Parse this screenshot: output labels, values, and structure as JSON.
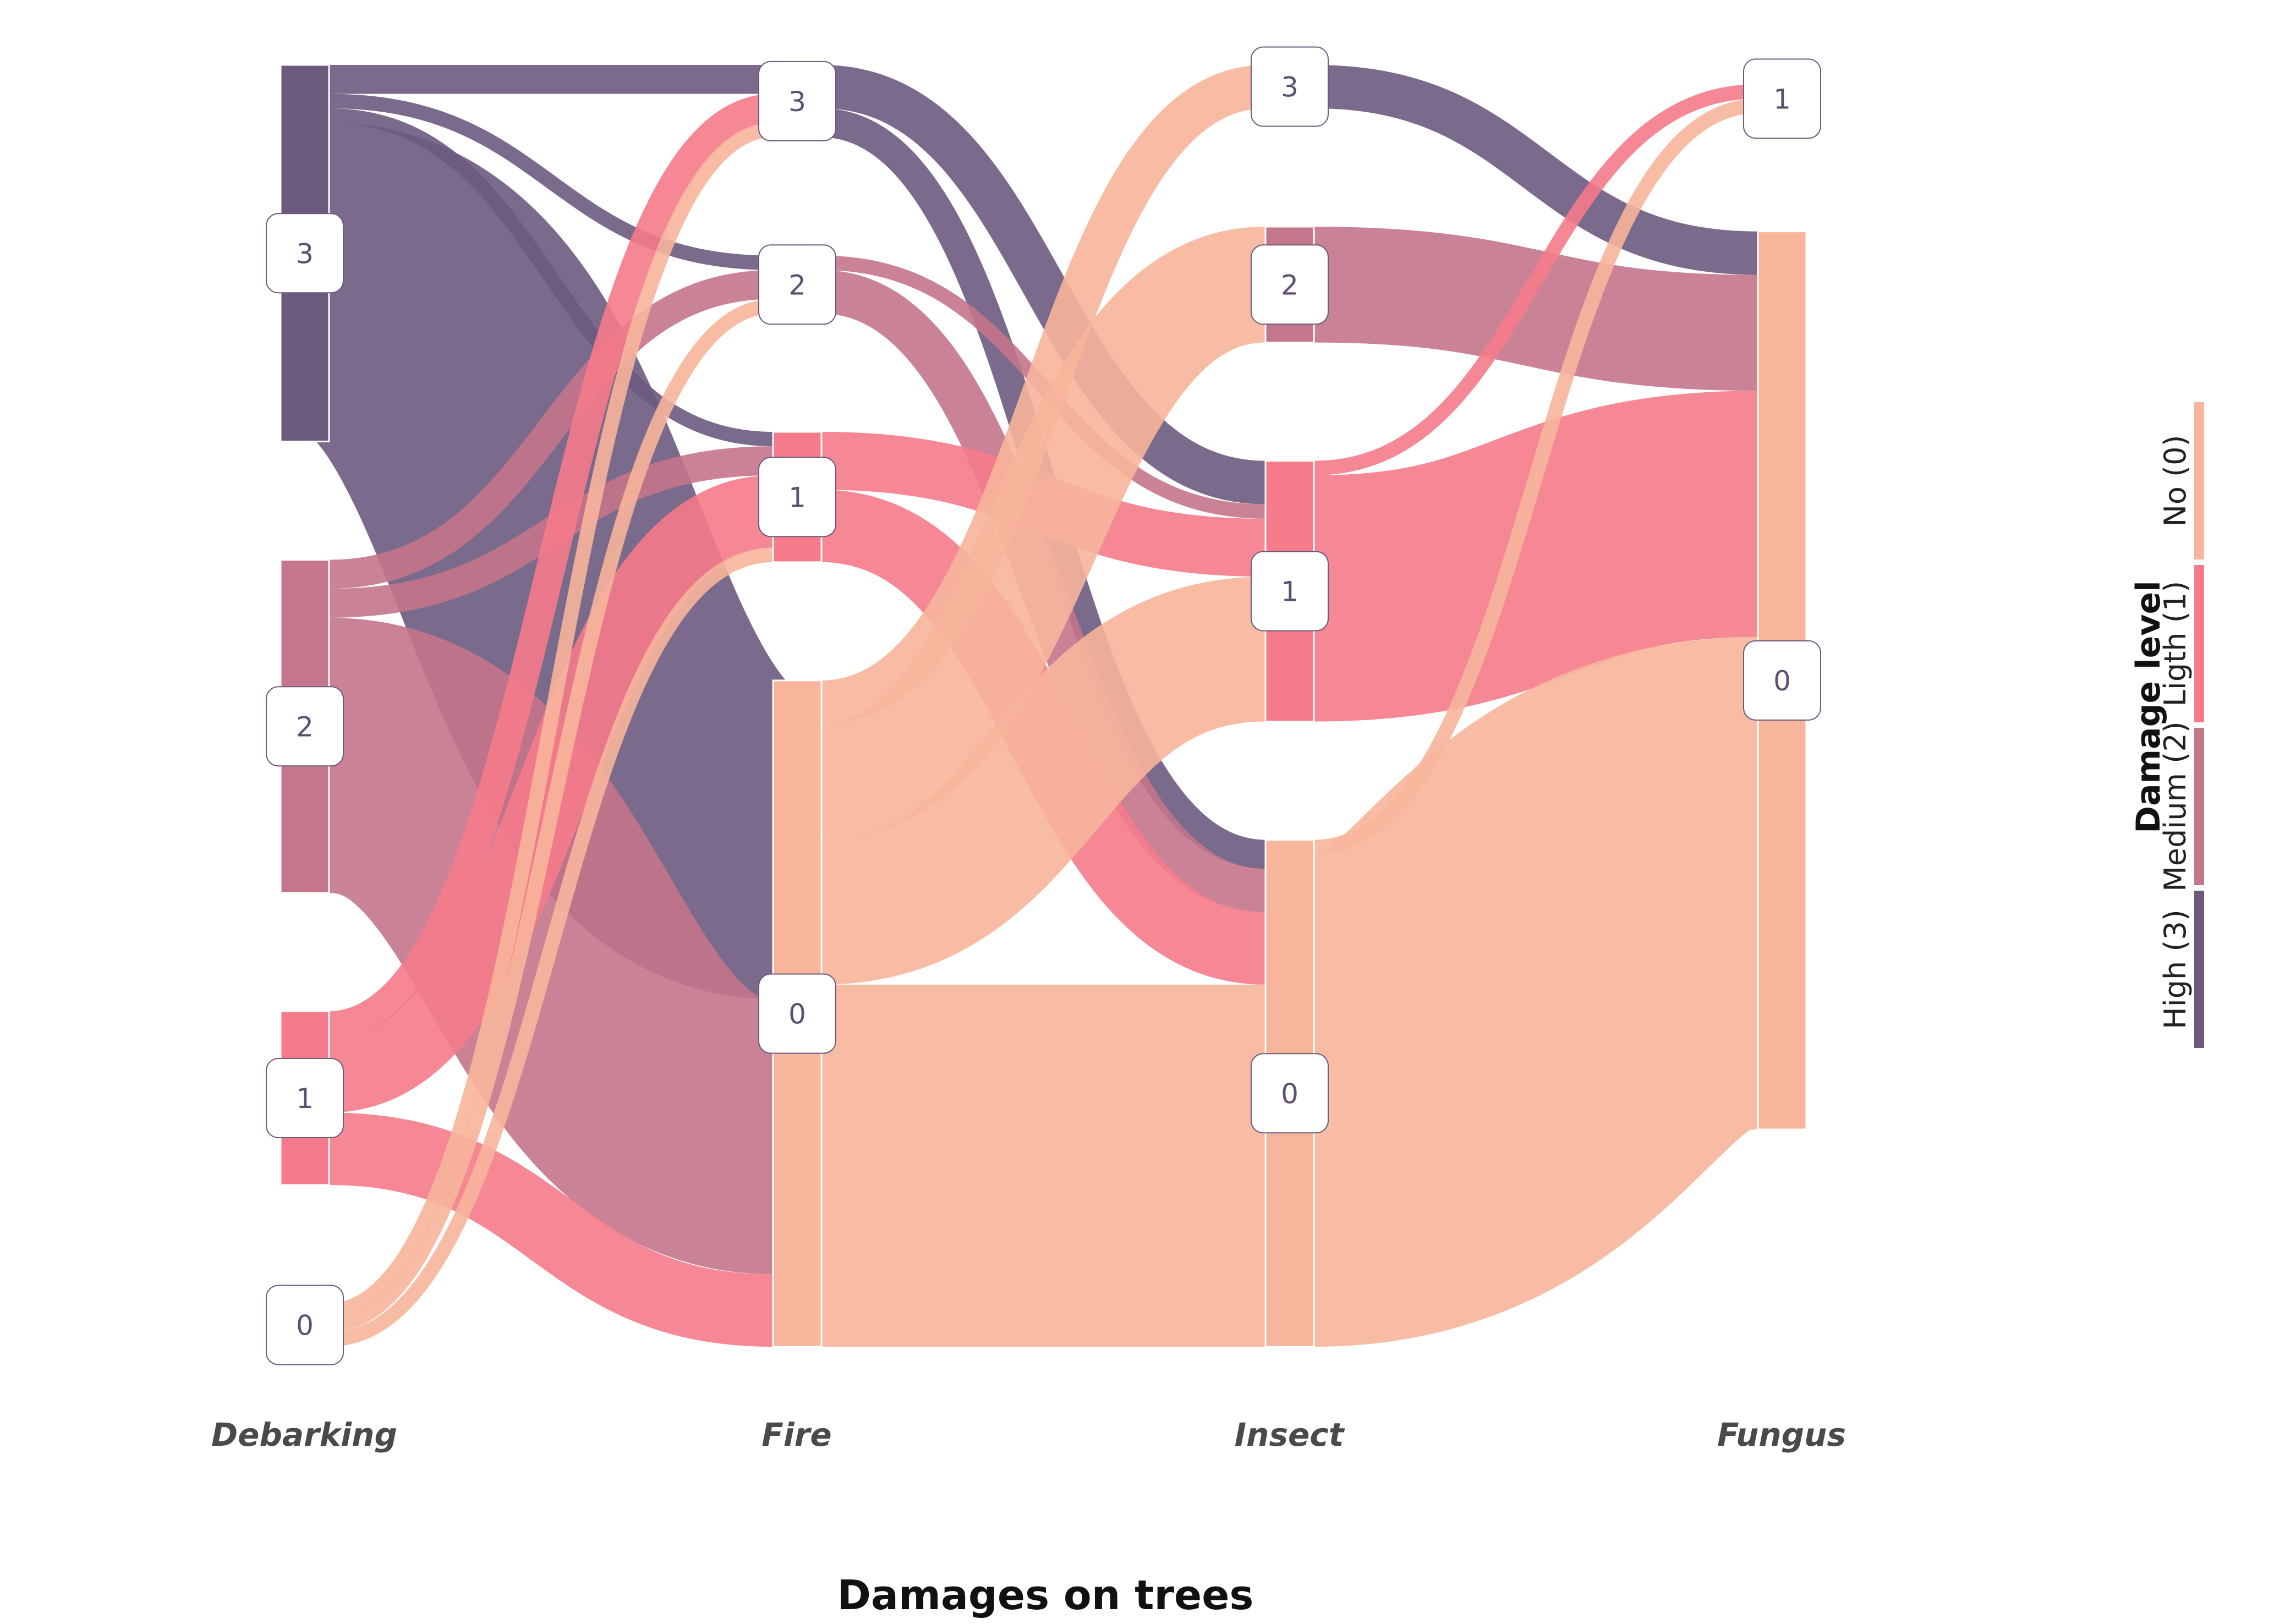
{
  "chart_data": {
    "type": "sankey",
    "title": "Damages on trees",
    "stages": [
      "Debarking",
      "Fire",
      "Insect",
      "Fungus"
    ],
    "levels": [
      "3",
      "2",
      "1",
      "0"
    ],
    "legend": {
      "title": "Damage level",
      "entries": [
        {
          "level": "3",
          "label": "High (3)",
          "color": "#6b5a7e"
        },
        {
          "level": "2",
          "label": "Medium (2)",
          "color": "#c4768b"
        },
        {
          "level": "1",
          "label": "Ligth (1)",
          "color": "#f57b8a"
        },
        {
          "level": "0",
          "label": "No (0)",
          "color": "#f7b59b"
        }
      ]
    },
    "nodes": [
      {
        "stage": "Debarking",
        "level": "3",
        "value": 26
      },
      {
        "stage": "Debarking",
        "level": "2",
        "value": 23
      },
      {
        "stage": "Debarking",
        "level": "1",
        "value": 12
      },
      {
        "stage": "Debarking",
        "level": "0",
        "value": 3
      },
      {
        "stage": "Fire",
        "level": "3",
        "value": 5
      },
      {
        "stage": "Fire",
        "level": "2",
        "value": 4
      },
      {
        "stage": "Fire",
        "level": "1",
        "value": 9
      },
      {
        "stage": "Fire",
        "level": "0",
        "value": 46
      },
      {
        "stage": "Insect",
        "level": "3",
        "value": 3
      },
      {
        "stage": "Insect",
        "level": "2",
        "value": 8
      },
      {
        "stage": "Insect",
        "level": "1",
        "value": 18
      },
      {
        "stage": "Insect",
        "level": "0",
        "value": 35
      },
      {
        "stage": "Fungus",
        "level": "1",
        "value": 2
      },
      {
        "stage": "Fungus",
        "level": "0",
        "value": 62
      }
    ],
    "links": [
      {
        "source": "Debarking:3",
        "target": "Fire:3",
        "value": 2
      },
      {
        "source": "Debarking:3",
        "target": "Fire:2",
        "value": 1
      },
      {
        "source": "Debarking:3",
        "target": "Fire:1",
        "value": 1
      },
      {
        "source": "Debarking:3",
        "target": "Fire:0",
        "value": 22
      },
      {
        "source": "Debarking:2",
        "target": "Fire:2",
        "value": 2
      },
      {
        "source": "Debarking:2",
        "target": "Fire:1",
        "value": 2
      },
      {
        "source": "Debarking:2",
        "target": "Fire:0",
        "value": 19
      },
      {
        "source": "Debarking:1",
        "target": "Fire:3",
        "value": 2
      },
      {
        "source": "Debarking:1",
        "target": "Fire:1",
        "value": 5
      },
      {
        "source": "Debarking:1",
        "target": "Fire:0",
        "value": 5
      },
      {
        "source": "Debarking:0",
        "target": "Fire:3",
        "value": 1
      },
      {
        "source": "Debarking:0",
        "target": "Fire:2",
        "value": 1
      },
      {
        "source": "Debarking:0",
        "target": "Fire:1",
        "value": 1
      },
      {
        "source": "Fire:3",
        "target": "Insect:1",
        "value": 3
      },
      {
        "source": "Fire:3",
        "target": "Insect:0",
        "value": 2
      },
      {
        "source": "Fire:2",
        "target": "Insect:1",
        "value": 1
      },
      {
        "source": "Fire:2",
        "target": "Insect:0",
        "value": 3
      },
      {
        "source": "Fire:1",
        "target": "Insect:1",
        "value": 4
      },
      {
        "source": "Fire:1",
        "target": "Insect:0",
        "value": 5
      },
      {
        "source": "Fire:0",
        "target": "Insect:3",
        "value": 3
      },
      {
        "source": "Fire:0",
        "target": "Insect:2",
        "value": 8
      },
      {
        "source": "Fire:0",
        "target": "Insect:1",
        "value": 10
      },
      {
        "source": "Fire:0",
        "target": "Insect:0",
        "value": 25
      },
      {
        "source": "Insect:3",
        "target": "Fungus:0",
        "value": 3
      },
      {
        "source": "Insect:2",
        "target": "Fungus:0",
        "value": 8
      },
      {
        "source": "Insect:1",
        "target": "Fungus:1",
        "value": 1
      },
      {
        "source": "Insect:1",
        "target": "Fungus:0",
        "value": 17
      },
      {
        "source": "Insect:0",
        "target": "Fungus:1",
        "value": 1
      },
      {
        "source": "Insect:0",
        "target": "Fungus:0",
        "value": 34
      }
    ]
  }
}
